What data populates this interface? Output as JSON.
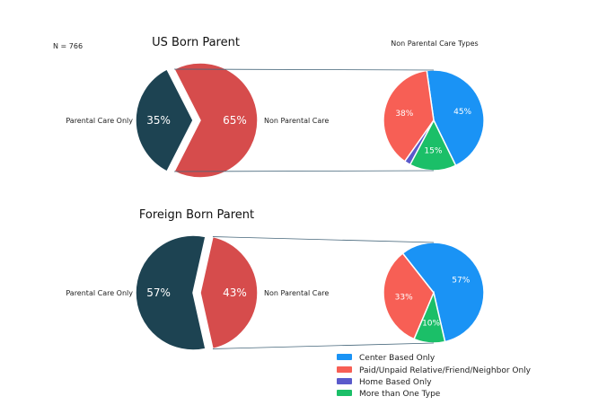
{
  "sample_note": "N = 766",
  "legend": [
    {
      "label": "Center Based Only",
      "color": "#1a93f5"
    },
    {
      "label": "Paid/Unpaid Relative/Friend/Neighbor Only",
      "color": "#f75f55"
    },
    {
      "label": "Home Based Only",
      "color": "#5a5acb"
    },
    {
      "label": "More than One Type",
      "color": "#1bbf68"
    }
  ],
  "colors": {
    "parental": "#1d4352",
    "non_parental": "#d64c4c",
    "connector": "#45667a"
  },
  "chart_data": [
    {
      "type": "pie",
      "title": "US Born Parent",
      "categories": [
        "Parental Care Only",
        "Non Parental Care"
      ],
      "values": [
        35,
        65
      ],
      "value_labels": [
        "35%",
        "65%"
      ],
      "breakdown": {
        "title": "Non Parental Care Types",
        "type": "pie",
        "categories": [
          "Center Based Only",
          "Paid/Unpaid Relative/Friend/Neighbor Only",
          "Home Based Only",
          "More than One Type"
        ],
        "values": [
          45,
          38,
          2,
          15
        ],
        "value_labels": [
          "45%",
          "38%",
          "",
          "15%"
        ]
      }
    },
    {
      "type": "pie",
      "title": "Foreign Born Parent",
      "categories": [
        "Parental Care Only",
        "Non Parental Care"
      ],
      "values": [
        57,
        43
      ],
      "value_labels": [
        "57%",
        "43%"
      ],
      "breakdown": {
        "title": "",
        "type": "pie",
        "categories": [
          "Center Based Only",
          "Paid/Unpaid Relative/Friend/Neighbor Only",
          "Home Based Only",
          "More than One Type"
        ],
        "values": [
          57,
          33,
          0,
          10
        ],
        "value_labels": [
          "57%",
          "33%",
          "",
          "10%"
        ]
      }
    }
  ]
}
